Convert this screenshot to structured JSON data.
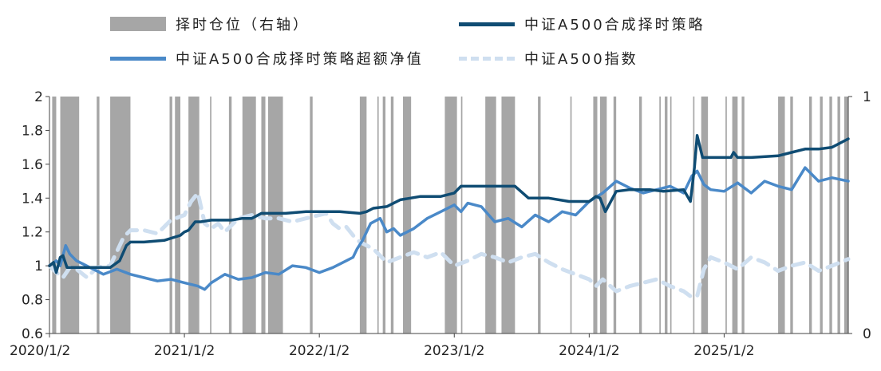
{
  "chart_data": {
    "type": "line",
    "legend": [
      {
        "key": "position",
        "label": "择时仓位（右轴）",
        "color": "#a6a6a6",
        "style": "box"
      },
      {
        "key": "strategy",
        "label": "中证A500合成择时策略",
        "color": "#0f4c73",
        "style": "solid"
      },
      {
        "key": "excess",
        "label": "中证A500合成择时策略超额净值",
        "color": "#4a89c8",
        "style": "solid"
      },
      {
        "key": "index",
        "label": "中证A500指数",
        "color": "#cfdff0",
        "style": "dashed"
      }
    ],
    "x_ticks": [
      "2020/1/2",
      "2021/1/2",
      "2022/1/2",
      "2023/1/2",
      "2024/1/2",
      "2025/1/2"
    ],
    "y_left": {
      "ticks": [
        "2",
        "1.8",
        "1.6",
        "1.4",
        "1.2",
        "1",
        "0.8",
        "0.6"
      ],
      "min": 0.6,
      "max": 2.0
    },
    "y_right": {
      "ticks": [
        "1",
        "0"
      ],
      "min": 0,
      "max": 1
    },
    "x_range": [
      2020.0,
      2025.92
    ],
    "position_bands": [
      [
        2020.02,
        2020.05
      ],
      [
        2020.08,
        2020.22
      ],
      [
        2020.35,
        2020.37
      ],
      [
        2020.45,
        2020.6
      ],
      [
        2020.89,
        2020.91
      ],
      [
        2020.93,
        2020.97
      ],
      [
        2021.03,
        2021.11
      ],
      [
        2021.19,
        2021.2
      ],
      [
        2021.33,
        2021.35
      ],
      [
        2021.43,
        2021.53
      ],
      [
        2021.57,
        2021.6
      ],
      [
        2021.62,
        2021.73
      ],
      [
        2021.93,
        2021.95
      ],
      [
        2022.3,
        2022.35
      ],
      [
        2022.43,
        2022.44
      ],
      [
        2022.47,
        2022.49
      ],
      [
        2022.53,
        2022.55
      ],
      [
        2022.62,
        2022.68
      ],
      [
        2022.93,
        2023.02
      ],
      [
        2023.05,
        2023.06
      ],
      [
        2023.23,
        2023.31
      ],
      [
        2023.35,
        2023.45
      ],
      [
        2023.62,
        2023.64
      ],
      [
        2023.86,
        2023.87
      ],
      [
        2024.03,
        2024.06
      ],
      [
        2024.08,
        2024.13
      ],
      [
        2024.18,
        2024.2
      ],
      [
        2024.37,
        2024.39
      ],
      [
        2024.52,
        2024.53
      ],
      [
        2024.56,
        2024.58
      ],
      [
        2024.6,
        2024.61
      ],
      [
        2024.77,
        2024.78
      ],
      [
        2024.83,
        2024.88
      ],
      [
        2025.01,
        2025.02
      ],
      [
        2025.06,
        2025.1
      ],
      [
        2025.13,
        2025.15
      ],
      [
        2025.4,
        2025.45
      ],
      [
        2025.49,
        2025.51
      ],
      [
        2025.63,
        2025.65
      ],
      [
        2025.71,
        2025.73
      ],
      [
        2025.78,
        2025.8
      ],
      [
        2025.84,
        2025.86
      ],
      [
        2025.89,
        2025.92
      ]
    ],
    "series": [
      {
        "key": "strategy",
        "name": "中证A500合成择时策略",
        "x": [
          2020.0,
          2020.03,
          2020.05,
          2020.08,
          2020.1,
          2020.13,
          2020.18,
          2020.25,
          2020.33,
          2020.45,
          2020.52,
          2020.57,
          2020.6,
          2020.7,
          2020.85,
          2020.97,
          2021.0,
          2021.03,
          2021.08,
          2021.12,
          2021.2,
          2021.35,
          2021.43,
          2021.5,
          2021.57,
          2021.65,
          2021.75,
          2021.9,
          2022.05,
          2022.15,
          2022.3,
          2022.35,
          2022.4,
          2022.5,
          2022.6,
          2022.75,
          2022.9,
          2023.0,
          2023.05,
          2023.2,
          2023.3,
          2023.45,
          2023.55,
          2023.7,
          2023.85,
          2024.0,
          2024.05,
          2024.08,
          2024.12,
          2024.2,
          2024.3,
          2024.45,
          2024.55,
          2024.7,
          2024.75,
          2024.78,
          2024.8,
          2024.84,
          2024.9,
          2025.05,
          2025.07,
          2025.1,
          2025.2,
          2025.4,
          2025.5,
          2025.6,
          2025.7,
          2025.8,
          2025.92
        ],
        "values": [
          1.0,
          1.02,
          0.96,
          1.05,
          1.06,
          0.99,
          0.99,
          0.99,
          0.99,
          0.99,
          1.03,
          1.12,
          1.14,
          1.14,
          1.15,
          1.18,
          1.2,
          1.21,
          1.26,
          1.26,
          1.27,
          1.27,
          1.28,
          1.28,
          1.31,
          1.31,
          1.31,
          1.32,
          1.32,
          1.32,
          1.31,
          1.32,
          1.34,
          1.35,
          1.39,
          1.41,
          1.41,
          1.43,
          1.47,
          1.47,
          1.47,
          1.47,
          1.4,
          1.4,
          1.38,
          1.38,
          1.41,
          1.4,
          1.32,
          1.44,
          1.45,
          1.45,
          1.44,
          1.45,
          1.38,
          1.58,
          1.77,
          1.64,
          1.64,
          1.64,
          1.67,
          1.64,
          1.64,
          1.65,
          1.67,
          1.69,
          1.69,
          1.7,
          1.75
        ]
      },
      {
        "key": "excess",
        "name": "中证A500合成择时策略超额净值",
        "x": [
          2020.0,
          2020.05,
          2020.08,
          2020.12,
          2020.15,
          2020.2,
          2020.25,
          2020.3,
          2020.35,
          2020.4,
          2020.5,
          2020.6,
          2020.7,
          2020.8,
          2020.9,
          2021.0,
          2021.1,
          2021.15,
          2021.2,
          2021.3,
          2021.4,
          2021.5,
          2021.6,
          2021.7,
          2021.8,
          2021.9,
          2022.0,
          2022.1,
          2022.2,
          2022.25,
          2022.28,
          2022.32,
          2022.38,
          2022.45,
          2022.5,
          2022.55,
          2022.6,
          2022.7,
          2022.8,
          2022.9,
          2023.0,
          2023.05,
          2023.1,
          2023.2,
          2023.3,
          2023.4,
          2023.5,
          2023.6,
          2023.7,
          2023.8,
          2023.9,
          2024.0,
          2024.1,
          2024.2,
          2024.3,
          2024.4,
          2024.5,
          2024.6,
          2024.7,
          2024.76,
          2024.8,
          2024.85,
          2024.9,
          2025.0,
          2025.1,
          2025.2,
          2025.3,
          2025.4,
          2025.5,
          2025.6,
          2025.7,
          2025.8,
          2025.92
        ],
        "values": [
          1.0,
          1.03,
          1.0,
          1.12,
          1.07,
          1.03,
          1.01,
          0.99,
          0.97,
          0.95,
          0.98,
          0.95,
          0.93,
          0.91,
          0.92,
          0.9,
          0.88,
          0.86,
          0.9,
          0.95,
          0.92,
          0.93,
          0.96,
          0.95,
          1.0,
          0.99,
          0.96,
          0.99,
          1.03,
          1.05,
          1.1,
          1.15,
          1.25,
          1.28,
          1.2,
          1.22,
          1.18,
          1.22,
          1.28,
          1.32,
          1.36,
          1.32,
          1.37,
          1.35,
          1.26,
          1.28,
          1.23,
          1.3,
          1.26,
          1.32,
          1.3,
          1.38,
          1.43,
          1.5,
          1.46,
          1.43,
          1.45,
          1.47,
          1.43,
          1.53,
          1.56,
          1.48,
          1.45,
          1.44,
          1.49,
          1.43,
          1.5,
          1.47,
          1.45,
          1.58,
          1.5,
          1.52,
          1.5
        ]
      },
      {
        "key": "index",
        "name": "中证A500指数",
        "x": [
          2020.0,
          2020.05,
          2020.1,
          2020.15,
          2020.2,
          2020.28,
          2020.35,
          2020.45,
          2020.55,
          2020.6,
          2020.7,
          2020.8,
          2020.9,
          2021.0,
          2021.05,
          2021.1,
          2021.15,
          2021.2,
          2021.25,
          2021.3,
          2021.4,
          2021.5,
          2021.6,
          2021.7,
          2021.8,
          2021.9,
          2022.0,
          2022.05,
          2022.1,
          2022.15,
          2022.2,
          2022.25,
          2022.3,
          2022.4,
          2022.5,
          2022.6,
          2022.7,
          2022.8,
          2022.9,
          2023.0,
          2023.1,
          2023.2,
          2023.3,
          2023.4,
          2023.5,
          2023.6,
          2023.7,
          2023.8,
          2023.9,
          2024.0,
          2024.05,
          2024.1,
          2024.2,
          2024.3,
          2024.4,
          2024.5,
          2024.6,
          2024.7,
          2024.75,
          2024.8,
          2024.85,
          2024.9,
          2025.0,
          2025.1,
          2025.2,
          2025.3,
          2025.4,
          2025.5,
          2025.6,
          2025.7,
          2025.8,
          2025.92
        ],
        "values": [
          1.0,
          0.96,
          0.93,
          0.99,
          0.98,
          0.93,
          0.99,
          1.0,
          1.17,
          1.21,
          1.21,
          1.19,
          1.27,
          1.3,
          1.38,
          1.43,
          1.25,
          1.22,
          1.25,
          1.2,
          1.28,
          1.3,
          1.28,
          1.28,
          1.26,
          1.28,
          1.3,
          1.31,
          1.25,
          1.22,
          1.23,
          1.18,
          1.14,
          1.1,
          1.02,
          1.05,
          1.08,
          1.05,
          1.08,
          1.0,
          1.03,
          1.07,
          1.05,
          1.02,
          1.05,
          1.07,
          1.02,
          0.98,
          0.95,
          0.92,
          0.88,
          0.92,
          0.85,
          0.88,
          0.9,
          0.92,
          0.88,
          0.85,
          0.82,
          0.82,
          0.98,
          1.05,
          1.02,
          0.98,
          1.05,
          1.02,
          0.97,
          1.0,
          1.02,
          0.97,
          1.0,
          1.04
        ]
      }
    ]
  }
}
